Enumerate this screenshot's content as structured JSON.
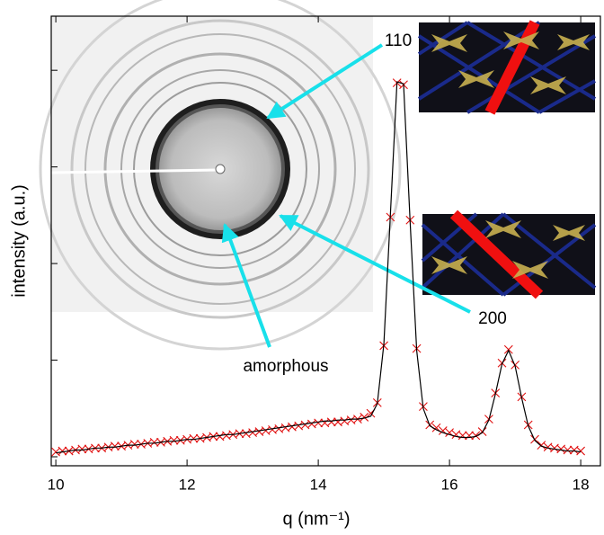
{
  "chart_data": {
    "type": "scatter",
    "y_label": "intensity (a.u.)",
    "x_label": "q (nm⁻¹)",
    "annotations": [
      "110",
      "200",
      "amorphous"
    ],
    "x": [
      10.0,
      10.1,
      10.2,
      10.3,
      10.4,
      10.5,
      10.6,
      10.7,
      10.8,
      10.9,
      11.0,
      11.1,
      11.2,
      11.3,
      11.4,
      11.5,
      11.6,
      11.7,
      11.8,
      11.9,
      12.0,
      12.1,
      12.2,
      12.3,
      12.4,
      12.5,
      12.6,
      12.7,
      12.8,
      12.9,
      13.0,
      13.1,
      13.2,
      13.3,
      13.4,
      13.5,
      13.6,
      13.7,
      13.8,
      13.9,
      14.0,
      14.1,
      14.2,
      14.3,
      14.4,
      14.5,
      14.6,
      14.7,
      14.8,
      14.9,
      15.0,
      15.1,
      15.2,
      15.3,
      15.4,
      15.5,
      15.6,
      15.7,
      15.8,
      15.9,
      16.0,
      16.1,
      16.2,
      16.3,
      16.4,
      16.5,
      16.6,
      16.7,
      16.8,
      16.9,
      17.0,
      17.1,
      17.2,
      17.3,
      17.4,
      17.5,
      17.6,
      17.7,
      17.8,
      17.9,
      18.0
    ],
    "series": [
      {
        "mode": "markers",
        "color": "#e01010",
        "values": [
          0.05,
          0.06,
          0.06,
          0.07,
          0.08,
          0.08,
          0.09,
          0.09,
          0.1,
          0.11,
          0.11,
          0.12,
          0.13,
          0.13,
          0.14,
          0.15,
          0.15,
          0.16,
          0.17,
          0.17,
          0.18,
          0.19,
          0.19,
          0.2,
          0.21,
          0.21,
          0.22,
          0.23,
          0.24,
          0.24,
          0.25,
          0.26,
          0.27,
          0.28,
          0.29,
          0.3,
          0.31,
          0.32,
          0.33,
          0.34,
          0.35,
          0.35,
          0.36,
          0.36,
          0.37,
          0.38,
          0.39,
          0.41,
          0.45,
          0.56,
          1.15,
          2.48,
          3.87,
          3.85,
          2.45,
          1.12,
          0.52,
          0.33,
          0.3,
          0.27,
          0.25,
          0.23,
          0.22,
          0.22,
          0.22,
          0.26,
          0.39,
          0.66,
          0.97,
          1.11,
          0.95,
          0.62,
          0.33,
          0.18,
          0.12,
          0.1,
          0.09,
          0.08,
          0.07,
          0.07,
          0.06
        ]
      },
      {
        "mode": "line",
        "color": "#000000",
        "values": [
          0.04,
          0.05,
          0.06,
          0.07,
          0.07,
          0.08,
          0.09,
          0.09,
          0.1,
          0.1,
          0.11,
          0.12,
          0.12,
          0.13,
          0.14,
          0.14,
          0.15,
          0.16,
          0.16,
          0.17,
          0.18,
          0.18,
          0.19,
          0.2,
          0.21,
          0.22,
          0.23,
          0.23,
          0.24,
          0.25,
          0.26,
          0.27,
          0.28,
          0.29,
          0.3,
          0.31,
          0.32,
          0.33,
          0.34,
          0.35,
          0.36,
          0.37,
          0.37,
          0.38,
          0.38,
          0.39,
          0.39,
          0.4,
          0.42,
          0.55,
          1.17,
          2.52,
          3.88,
          3.86,
          2.43,
          1.1,
          0.5,
          0.32,
          0.28,
          0.25,
          0.23,
          0.21,
          0.2,
          0.2,
          0.21,
          0.25,
          0.38,
          0.65,
          0.96,
          1.1,
          0.94,
          0.61,
          0.32,
          0.17,
          0.11,
          0.09,
          0.08,
          0.07,
          0.06,
          0.06,
          0.05
        ]
      }
    ],
    "xlim": [
      9.93,
      18.3
    ],
    "xticks": [
      10,
      12,
      14,
      16,
      18
    ],
    "ylim": [
      -0.093,
      4.56
    ],
    "yticks": [
      0,
      1,
      2,
      3,
      4
    ]
  }
}
